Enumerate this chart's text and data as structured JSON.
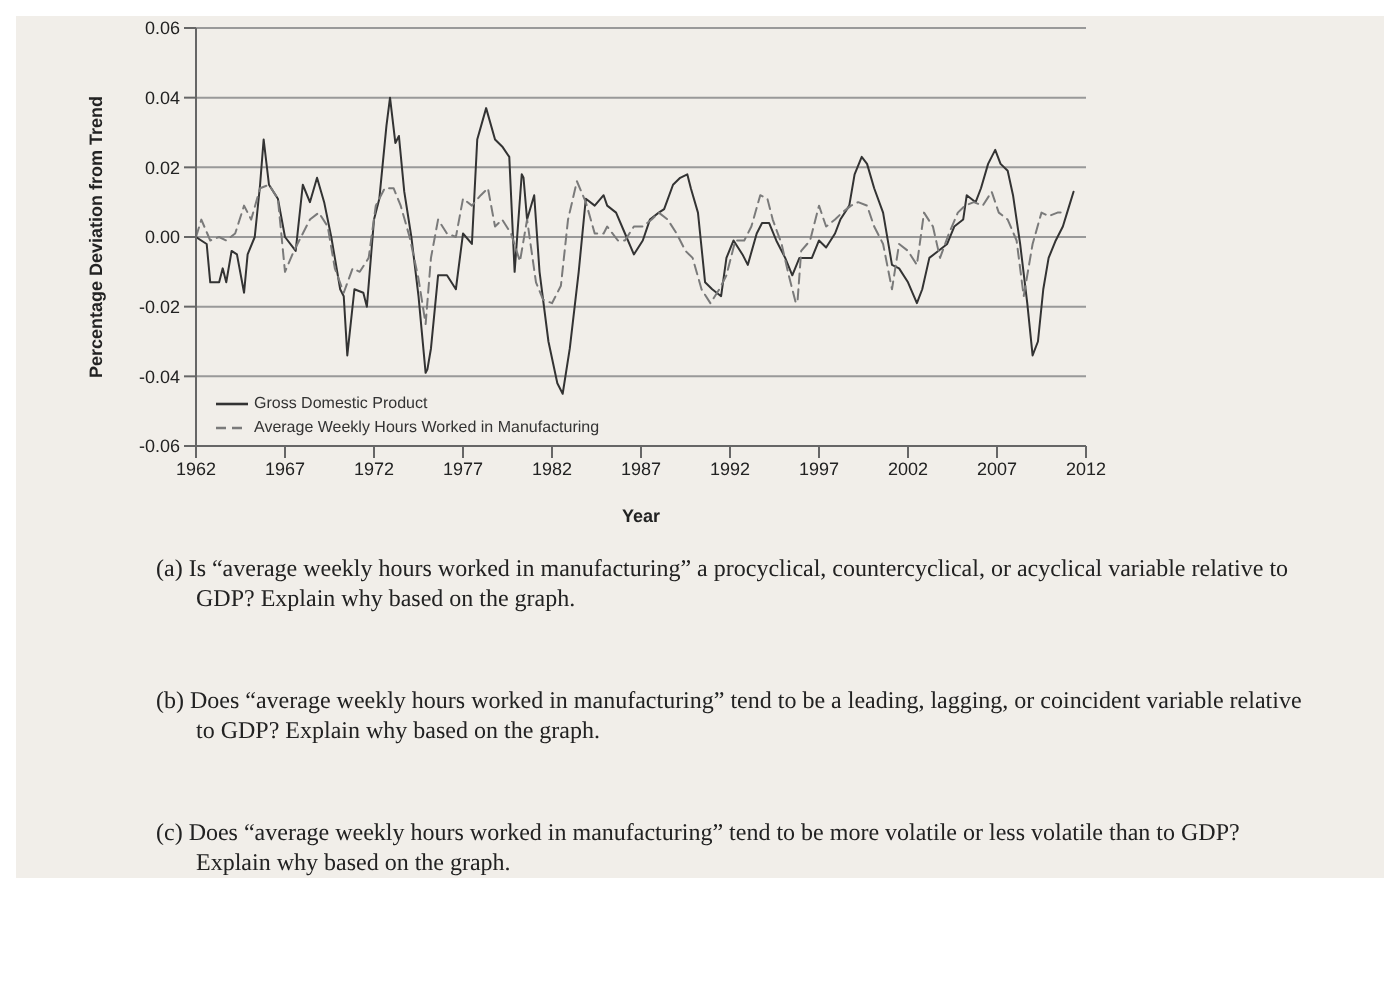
{
  "chart_data": {
    "type": "line",
    "xlabel": "Year",
    "ylabel": "Percentage Deviation from Trend",
    "xlim": [
      1962,
      2012
    ],
    "xticks": [
      1962,
      1967,
      1972,
      1977,
      1982,
      1987,
      1992,
      1997,
      2002,
      2007,
      2012
    ],
    "ylim": [
      -0.06,
      0.06
    ],
    "yticks": [
      {
        "value": -0.06,
        "label": "-0.06"
      },
      {
        "value": -0.04,
        "label": "-0.04"
      },
      {
        "value": -0.02,
        "label": "-0.02"
      },
      {
        "value": 0,
        "label": "0.00"
      },
      {
        "value": 0.02,
        "label": "0.02"
      },
      {
        "value": 0.04,
        "label": "0.04"
      },
      {
        "value": 0.06,
        "label": "0.06"
      }
    ],
    "grid": "y",
    "legend": "bottom left",
    "marker": "none",
    "series": [
      {
        "name": "Gross Domestic Product",
        "color": "#333333",
        "line_style": "solid",
        "x": [
          1962.0,
          1962.6,
          1962.8,
          1963.3,
          1963.5,
          1963.7,
          1964.0,
          1964.3,
          1964.7,
          1964.9,
          1965.3,
          1965.6,
          1965.8,
          1966.1,
          1966.6,
          1967.0,
          1967.6,
          1968.0,
          1968.4,
          1968.8,
          1969.2,
          1969.6,
          1970.1,
          1970.3,
          1970.5,
          1970.9,
          1971.4,
          1971.6,
          1972.0,
          1972.3,
          1972.7,
          1972.9,
          1973.2,
          1973.4,
          1973.7,
          1974.1,
          1974.5,
          1974.9,
          1975.0,
          1975.2,
          1975.6,
          1976.1,
          1976.6,
          1977.0,
          1977.5,
          1977.8,
          1978.3,
          1978.8,
          1979.2,
          1979.6,
          1979.9,
          1980.3,
          1980.4,
          1980.6,
          1981.0,
          1981.3,
          1981.8,
          1982.3,
          1982.6,
          1983.0,
          1983.5,
          1983.9,
          1984.4,
          1984.9,
          1985.1,
          1985.6,
          1986.1,
          1986.6,
          1987.1,
          1987.5,
          1988.0,
          1988.3,
          1988.8,
          1989.2,
          1989.6,
          1989.8,
          1990.2,
          1990.6,
          1991.0,
          1991.5,
          1991.8,
          1992.2,
          1992.7,
          1993.0,
          1993.5,
          1993.8,
          1994.2,
          1994.6,
          1995.1,
          1995.5,
          1995.9,
          1996.6,
          1997.0,
          1997.4,
          1997.9,
          1998.2,
          1998.7,
          1999.0,
          1999.4,
          1999.7,
          2000.1,
          2000.6,
          2001.1,
          2001.5,
          2002.0,
          2002.5,
          2002.8,
          2003.2,
          2003.7,
          2004.2,
          2004.6,
          2005.1,
          2005.3,
          2005.8,
          2006.1,
          2006.5,
          2006.9,
          2007.2,
          2007.6,
          2007.9,
          2008.3,
          2008.7,
          2009.0,
          2009.3,
          2009.6,
          2009.9,
          2010.3,
          2010.7,
          2011.0,
          2011.3
        ],
        "values": [
          0.0,
          -0.002,
          -0.013,
          -0.013,
          -0.009,
          -0.013,
          -0.004,
          -0.005,
          -0.016,
          -0.005,
          0.0,
          0.015,
          0.028,
          0.015,
          0.011,
          0.0,
          -0.004,
          0.015,
          0.01,
          0.017,
          0.01,
          0.0,
          -0.015,
          -0.017,
          -0.034,
          -0.015,
          -0.016,
          -0.02,
          0.005,
          0.011,
          0.032,
          0.04,
          0.027,
          0.029,
          0.013,
          0.0,
          -0.017,
          -0.039,
          -0.038,
          -0.032,
          -0.011,
          -0.011,
          -0.015,
          0.001,
          -0.002,
          0.028,
          0.037,
          0.028,
          0.026,
          0.023,
          -0.01,
          0.018,
          0.017,
          0.005,
          0.012,
          -0.01,
          -0.03,
          -0.042,
          -0.045,
          -0.032,
          -0.01,
          0.011,
          0.009,
          0.012,
          0.009,
          0.007,
          0.001,
          -0.005,
          -0.001,
          0.005,
          0.007,
          0.008,
          0.015,
          0.017,
          0.018,
          0.014,
          0.007,
          -0.013,
          -0.015,
          -0.017,
          -0.006,
          -0.001,
          -0.005,
          -0.008,
          0.001,
          0.004,
          0.004,
          -0.001,
          -0.006,
          -0.011,
          -0.006,
          -0.006,
          -0.001,
          -0.003,
          0.001,
          0.005,
          0.009,
          0.018,
          0.023,
          0.021,
          0.014,
          0.007,
          -0.008,
          -0.009,
          -0.013,
          -0.019,
          -0.015,
          -0.006,
          -0.004,
          -0.002,
          0.003,
          0.005,
          0.012,
          0.01,
          0.014,
          0.021,
          0.025,
          0.021,
          0.019,
          0.012,
          -0.002,
          -0.019,
          -0.034,
          -0.03,
          -0.015,
          -0.006,
          -0.001,
          0.003,
          0.008,
          0.013
        ]
      },
      {
        "name": "Average Weekly Hours Worked in Manufacturing",
        "color": "#7a7a7a",
        "line_style": "dashed",
        "x": [
          1962.0,
          1962.3,
          1962.8,
          1963.3,
          1963.7,
          1964.2,
          1964.7,
          1965.1,
          1965.6,
          1966.1,
          1966.6,
          1967.0,
          1967.5,
          1968.0,
          1968.4,
          1968.9,
          1969.4,
          1969.8,
          1970.3,
          1970.8,
          1971.2,
          1971.7,
          1972.1,
          1972.6,
          1973.1,
          1973.5,
          1974.0,
          1974.5,
          1974.9,
          1975.2,
          1975.6,
          1976.1,
          1976.6,
          1977.0,
          1977.5,
          1978.0,
          1978.4,
          1978.8,
          1979.2,
          1979.7,
          1980.2,
          1980.6,
          1981.1,
          1981.5,
          1982.0,
          1982.5,
          1982.9,
          1983.4,
          1983.9,
          1984.4,
          1984.9,
          1985.1,
          1985.7,
          1986.1,
          1986.6,
          1987.1,
          1987.6,
          1988.0,
          1988.5,
          1989.0,
          1989.5,
          1989.9,
          1990.4,
          1990.9,
          1991.4,
          1991.8,
          1992.3,
          1992.8,
          1993.2,
          1993.7,
          1994.1,
          1994.4,
          1994.9,
          1995.3,
          1995.7,
          1995.8,
          1996.0,
          1996.5,
          1997.0,
          1997.4,
          1997.9,
          1998.3,
          1998.8,
          1999.2,
          1999.7,
          2000.1,
          2000.6,
          2001.1,
          2001.5,
          2002.0,
          2002.5,
          2002.9,
          2003.4,
          2003.8,
          2004.3,
          2004.8,
          2005.2,
          2005.7,
          2006.2,
          2006.7,
          2007.1,
          2007.6,
          2008.1,
          2008.5,
          2009.0,
          2009.5,
          2009.9,
          2010.4,
          2010.9
        ],
        "values": [
          0.0,
          0.005,
          -0.001,
          0.0,
          -0.001,
          0.001,
          0.009,
          0.005,
          0.014,
          0.015,
          0.011,
          -0.01,
          -0.004,
          0.001,
          0.005,
          0.007,
          0.003,
          -0.009,
          -0.016,
          -0.009,
          -0.01,
          -0.006,
          0.009,
          0.014,
          0.014,
          0.009,
          0.0,
          -0.012,
          -0.025,
          -0.006,
          0.005,
          0.001,
          0.0,
          0.011,
          0.009,
          0.012,
          0.014,
          0.003,
          0.005,
          0.001,
          -0.007,
          0.005,
          -0.013,
          -0.018,
          -0.019,
          -0.014,
          0.005,
          0.016,
          0.01,
          0.001,
          0.001,
          0.003,
          -0.001,
          -0.001,
          0.003,
          0.003,
          0.005,
          0.007,
          0.005,
          0.001,
          -0.004,
          -0.006,
          -0.015,
          -0.019,
          -0.015,
          -0.011,
          -0.001,
          -0.001,
          0.003,
          0.012,
          0.011,
          0.005,
          -0.002,
          -0.011,
          -0.019,
          -0.018,
          -0.004,
          -0.001,
          0.009,
          0.003,
          0.005,
          0.007,
          0.009,
          0.01,
          0.009,
          0.003,
          -0.002,
          -0.015,
          -0.002,
          -0.004,
          -0.008,
          0.007,
          0.003,
          -0.006,
          0.001,
          0.007,
          0.009,
          0.01,
          0.009,
          0.013,
          0.007,
          0.005,
          -0.001,
          -0.017,
          -0.002,
          0.007,
          0.006,
          0.007,
          0.007
        ]
      }
    ],
    "annotations": [
      "(a) Is “average weekly hours worked in manufacturing” a procyclical, countercyclical, or acyclical variable relative to GDP? Explain why based on the graph.",
      "(b) Does “average weekly hours worked in manufacturing” tend to be a leading, lagging, or coincident variable relative to GDP? Explain why based on the graph.",
      "(c) Does “average weekly hours worked in manufacturing” tend to be more volatile or less volatile than to GDP? Explain why based on the graph."
    ]
  }
}
